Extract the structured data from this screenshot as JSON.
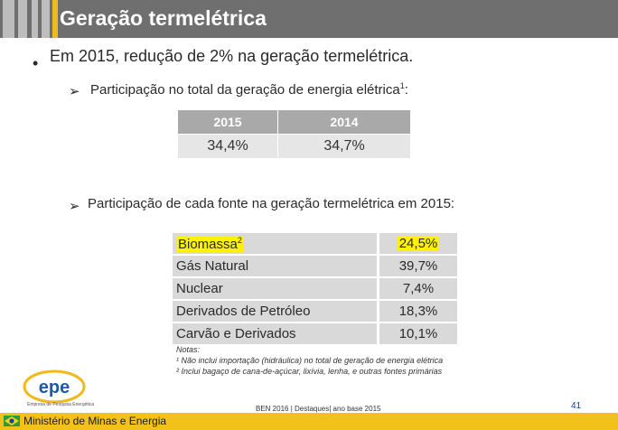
{
  "slide": {
    "title": "Geração termelétrica",
    "bullet_main": "Em 2015, redução de 2% na geração termelétrica.",
    "sub1": "Participação no total da geração de energia elétrica",
    "sub1_sup": "1",
    "sub2": "Participação de cada fonte na geração termelétrica em 2015:"
  },
  "table_total": {
    "headers": [
      "2015",
      "2014"
    ],
    "values": [
      "34,4%",
      "34,7%"
    ]
  },
  "table_fontes": {
    "rows": [
      {
        "label": "Biomassa",
        "sup": "2",
        "value": "24,5%"
      },
      {
        "label": "Gás Natural",
        "value": "39,7%"
      },
      {
        "label": "Nuclear",
        "value": "7,4%"
      },
      {
        "label": "Derivados de Petróleo",
        "value": "18,3%"
      },
      {
        "label": "Carvão e Derivados",
        "value": "10,1%"
      }
    ]
  },
  "notes": {
    "title": "Notas:",
    "note1": "¹ Não inclui importação (hidráulica) no total de geração de energia elétrica",
    "note2": "² Inclui bagaço de cana-de-açúcar, lixívia, lenha, e outras fontes primárias"
  },
  "footer": {
    "logo_text": "epe",
    "logo_subtitle": "Empresa de Pesquisa Energética",
    "center_text": "BEN 2016 | Destaques| ano base 2015",
    "page_number": "41",
    "ministry": "Ministério de Minas e Energia"
  },
  "colors": {
    "header": "#6f6f6f",
    "accent": "#f2b91e",
    "highlight": "#fff200",
    "footer_bar": "#f3c21a"
  }
}
